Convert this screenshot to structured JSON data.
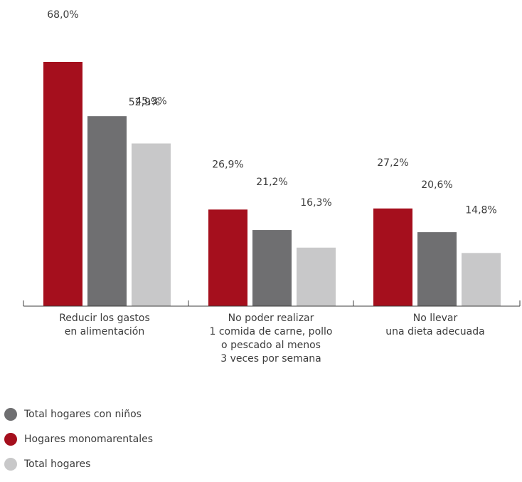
{
  "chart_data": {
    "type": "bar",
    "categories": [
      [
        "Reducir los gastos",
        "en alimentación"
      ],
      [
        "No poder realizar",
        "1 comida de carne, pollo",
        "o pescado al menos",
        "3 veces por semana"
      ],
      [
        "No llevar",
        "una dieta adecuada"
      ]
    ],
    "series": [
      {
        "name": "Hogares monomarentales",
        "color": "#a50f1d",
        "values": [
          68.0,
          26.9,
          27.2
        ],
        "labels": [
          "68,0%",
          "26,9%",
          "27,2%"
        ]
      },
      {
        "name": "Total hogares con niños",
        "color": "#6f6f71",
        "values": [
          52.9,
          21.2,
          20.6
        ],
        "labels": [
          "52,9%",
          "21,2%",
          "20,6%"
        ]
      },
      {
        "name": "Total hogares",
        "color": "#c8c8c9",
        "values": [
          45.3,
          16.3,
          14.8
        ],
        "labels": [
          "45,3%",
          "16,3%",
          "14,8%"
        ]
      }
    ],
    "legend": [
      {
        "label": "Total hogares con niños",
        "color": "#6f6f71"
      },
      {
        "label": "Hogares monomarentales",
        "color": "#a50f1d"
      },
      {
        "label": "Total hogares",
        "color": "#c8c8c9"
      }
    ],
    "ylim": [
      0,
      68
    ]
  }
}
